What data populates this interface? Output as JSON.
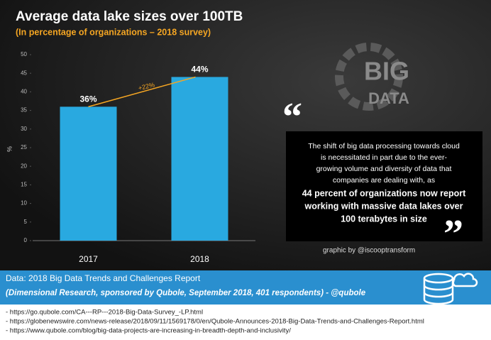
{
  "chart_data": {
    "type": "bar",
    "title": "Average data lake sizes over 100TB",
    "subtitle": "(In percentage of organizations – 2018 survey)",
    "categories": [
      "2017",
      "2018"
    ],
    "values": [
      36,
      44
    ],
    "value_labels": [
      "36%",
      "44%"
    ],
    "color": "#29a9e0",
    "ylim": [
      0,
      50
    ],
    "yticks": [
      0,
      5,
      10,
      15,
      20,
      25,
      30,
      35,
      40,
      45,
      50
    ],
    "y_label": "%",
    "annotation": "+22%",
    "grid": false
  },
  "logo": {
    "top": "BIG",
    "bottom": "DATA"
  },
  "quote": {
    "text": [
      "The shift of big data processing towards cloud",
      "is necessitated in part due to the ever-",
      "growing volume and diversity of data that",
      "companies are dealing with, as"
    ],
    "emphasis": [
      "44 percent of organizations now report",
      "working with massive data lakes over",
      "100 terabytes in size"
    ]
  },
  "credit": "graphic by @iscooptransform",
  "source": {
    "title": "Data: 2018 Big Data Trends and Challenges Report",
    "detail": "(Dimensional Research, sponsored by Qubole, September 2018, 401 respondents) - @qubole"
  },
  "links": [
    "- https://go.qubole.com/CA---RP---2018-Big-Data-Survey_-LP.html",
    "- https://globenewswire.com/news-release/2018/09/11/1569178/0/en/Qubole-Announces-2018-Big-Data-Trends-and-Challenges-Report.html",
    "- https://www.qubole.com/blog/big-data-projects-are-increasing-in-breadth-depth-and-inclusivity/"
  ]
}
